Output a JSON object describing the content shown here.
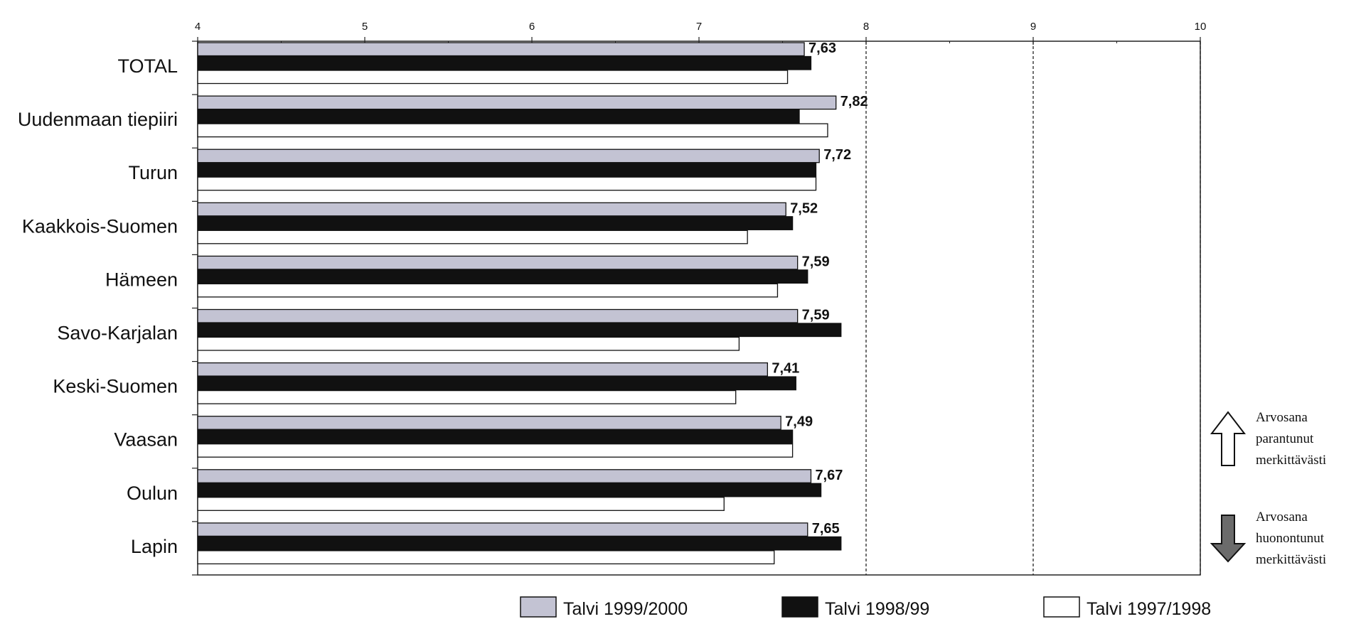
{
  "chart_data": {
    "type": "bar",
    "orientation": "horizontal",
    "categories": [
      "TOTAL",
      "Uudenmaan tiepiiri",
      "Turun",
      "Kaakkois-Suomen",
      "Hämeen",
      "Savo-Karjalan",
      "Keski-Suomen",
      "Vaasan",
      "Oulun",
      "Lapin"
    ],
    "series": [
      {
        "name": "Talvi 1999/2000",
        "values": [
          7.63,
          7.82,
          7.72,
          7.52,
          7.59,
          7.59,
          7.41,
          7.49,
          7.67,
          7.65
        ],
        "color": "#c3c3d3"
      },
      {
        "name": "Talvi 1998/99",
        "values": [
          7.67,
          7.6,
          7.7,
          7.56,
          7.65,
          7.85,
          7.58,
          7.56,
          7.73,
          7.85
        ],
        "color": "#111111"
      },
      {
        "name": "Talvi 1997/1998",
        "values": [
          7.53,
          7.77,
          7.7,
          7.29,
          7.47,
          7.24,
          7.22,
          7.56,
          7.15,
          7.45
        ],
        "color": "#ffffff"
      }
    ],
    "value_labels": [
      "7,63",
      "7,82",
      "7,72",
      "7,52",
      "7,59",
      "7,59",
      "7,41",
      "7,49",
      "7,67",
      "7,65"
    ],
    "xlim": [
      4,
      10
    ],
    "x_ticks": [
      "4",
      "5",
      "6",
      "7",
      "8",
      "9",
      "10"
    ],
    "dashed_gridlines_at": [
      8,
      9,
      10
    ],
    "legend_position": "bottom"
  },
  "notes": [
    {
      "icon": "arrow-up-outline-icon",
      "lines": [
        "Arvosana",
        "parantunut",
        "merkittävästi"
      ]
    },
    {
      "icon": "arrow-down-filled-icon",
      "lines": [
        "Arvosana",
        "huonontunut",
        "merkittävästi"
      ],
      "color": "#6b6b6b"
    }
  ]
}
